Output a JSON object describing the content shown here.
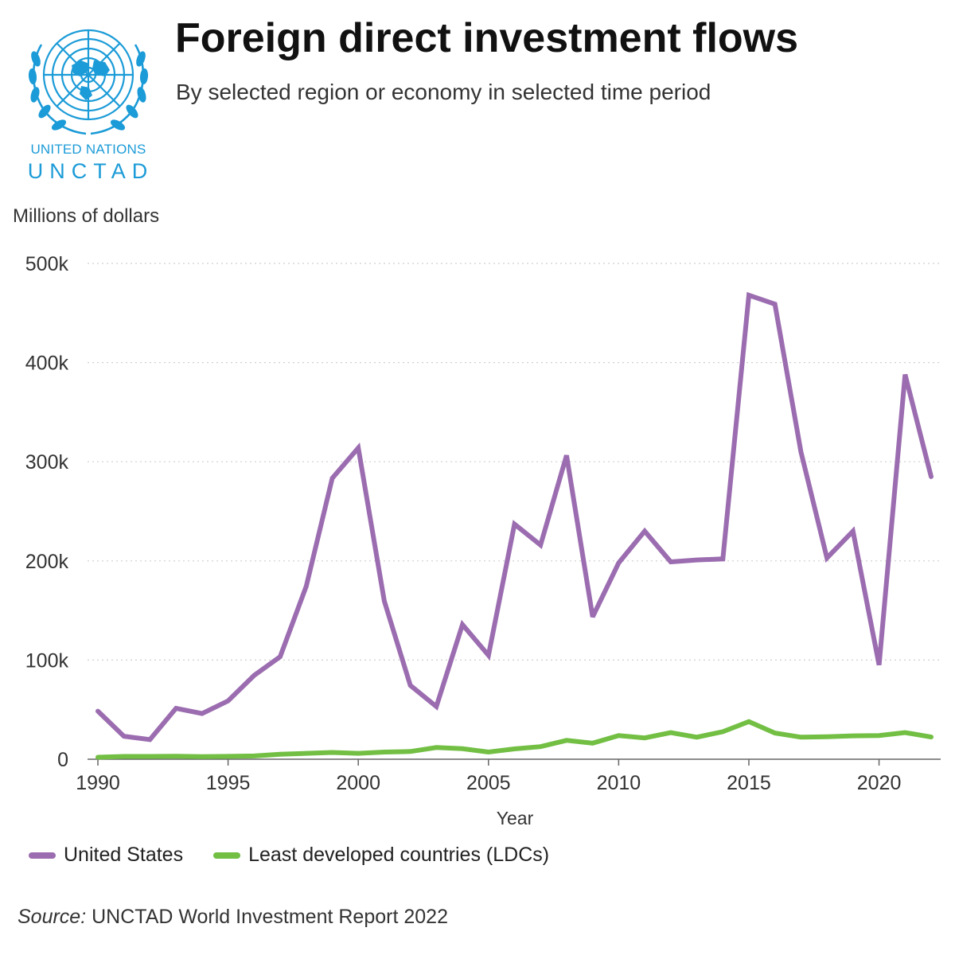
{
  "header": {
    "title": "Foreign direct investment flows",
    "subtitle": "By selected region or economy in selected time period"
  },
  "logo": {
    "line1": "UNITED NATIONS",
    "line2": "UNCTAD",
    "color": "#1b9bd7",
    "icon": "un-emblem-icon"
  },
  "footer": {
    "source_label": "Source:",
    "source_text": "UNCTAD World Investment Report 2022"
  },
  "chart_data": {
    "type": "line",
    "title": "Foreign direct investment flows",
    "subtitle": "By selected region or economy in selected time period",
    "unit_label": "Millions of dollars",
    "xlabel": "Year",
    "ylabel": "",
    "xlim": [
      1990,
      2022
    ],
    "ylim": [
      0,
      500000
    ],
    "x_ticks": [
      1990,
      1995,
      2000,
      2005,
      2010,
      2015,
      2020
    ],
    "x_tick_labels": [
      "1990",
      "1995",
      "2000",
      "2005",
      "2010",
      "2015",
      "2020"
    ],
    "y_ticks": [
      0,
      100000,
      200000,
      300000,
      400000,
      500000
    ],
    "y_tick_labels": [
      "0",
      "100k",
      "200k",
      "300k",
      "400k",
      "500k"
    ],
    "grid": true,
    "legend_position": "bottom-left",
    "x": [
      1990,
      1991,
      1992,
      1993,
      1994,
      1995,
      1996,
      1997,
      1998,
      1999,
      2000,
      2001,
      2002,
      2003,
      2004,
      2005,
      2006,
      2007,
      2008,
      2009,
      2010,
      2011,
      2012,
      2013,
      2014,
      2015,
      2016,
      2017,
      2018,
      2019,
      2020,
      2021,
      2022
    ],
    "series": [
      {
        "name": "United States",
        "color": "#9b6db0",
        "values": [
          48500,
          23200,
          19800,
          51400,
          46100,
          58800,
          84500,
          103400,
          174400,
          283400,
          314000,
          159500,
          74500,
          53100,
          135800,
          104800,
          237100,
          216000,
          306400,
          143600,
          198000,
          230000,
          199000,
          201000,
          202000,
          468000,
          459000,
          310000,
          203000,
          230000,
          95000,
          388000,
          285000
        ]
      },
      {
        "name": "Least developed countries (LDCs)",
        "color": "#72bf44",
        "values": [
          2000,
          2800,
          2800,
          3000,
          2600,
          2900,
          3300,
          5000,
          5900,
          6800,
          5900,
          7200,
          7800,
          11800,
          10600,
          7200,
          10400,
          12700,
          19000,
          16200,
          23800,
          21500,
          26900,
          22200,
          27800,
          38000,
          26400,
          22200,
          22700,
          23600,
          23900,
          26900,
          22400
        ]
      }
    ]
  }
}
